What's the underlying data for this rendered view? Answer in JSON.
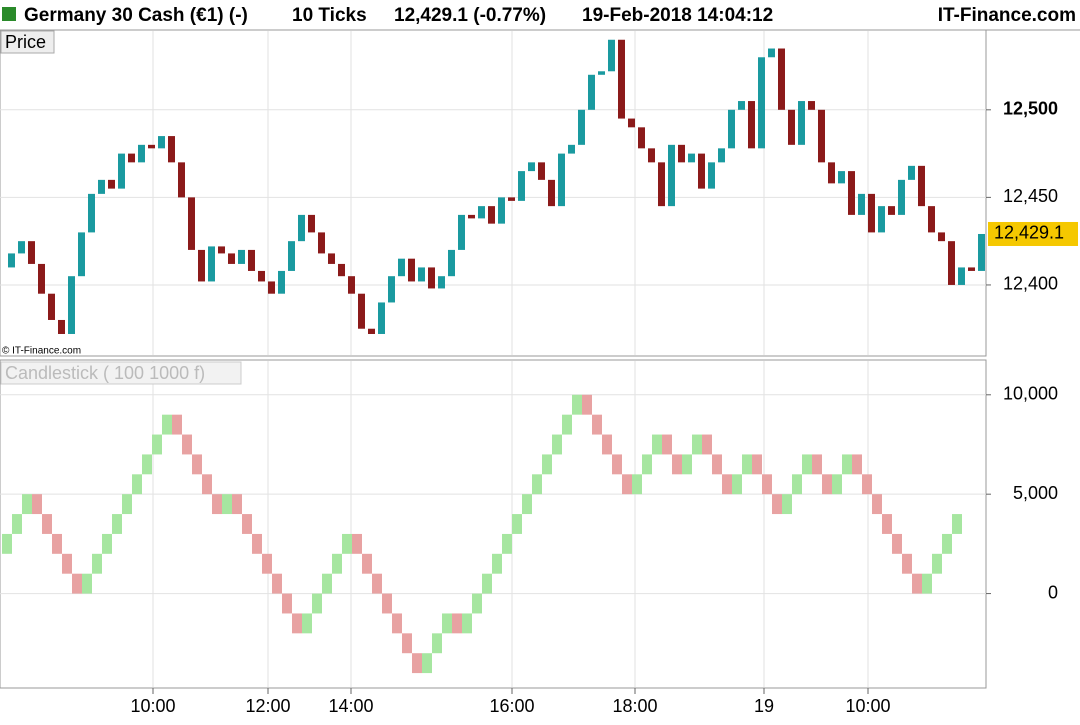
{
  "header": {
    "instrument": "Germany 30 Cash (€1) (-)",
    "interval": "10 Ticks",
    "quote": "12,429.1 (-0.77%)",
    "datetime": "19-Feb-2018 14:04:12",
    "brand": "IT-Finance.com"
  },
  "chart_data": [
    {
      "type": "price",
      "title": "Price",
      "credit": "© IT-Finance.com",
      "last_label": "12,429.1",
      "up_color": "#1a9aa0",
      "down_color": "#8b1a1a",
      "values": [
        12410,
        12418,
        12425,
        12412,
        12395,
        12380,
        12372,
        12405,
        12430,
        12452,
        12460,
        12455,
        12475,
        12470,
        12480,
        12478,
        12485,
        12470,
        12450,
        12420,
        12402,
        12422,
        12418,
        12412,
        12420,
        12408,
        12402,
        12395,
        12408,
        12425,
        12440,
        12430,
        12418,
        12412,
        12405,
        12395,
        12375,
        12372,
        12390,
        12405,
        12415,
        12402,
        12410,
        12398,
        12405,
        12420,
        12440,
        12438,
        12445,
        12435,
        12450,
        12448,
        12465,
        12470,
        12460,
        12445,
        12475,
        12480,
        12500,
        12520,
        12522,
        12540,
        12495,
        12490,
        12478,
        12470,
        12445,
        12480,
        12470,
        12475,
        12455,
        12470,
        12478,
        12500,
        12505,
        12478,
        12530,
        12535,
        12500,
        12480,
        12505,
        12500,
        12470,
        12458,
        12465,
        12440,
        12452,
        12430,
        12445,
        12440,
        12460,
        12468,
        12445,
        12430,
        12425,
        12400,
        12410,
        12408,
        12429.1
      ],
      "ylim": [
        12360,
        12545
      ],
      "yticks": [
        {
          "value": 12400,
          "label": "12,400"
        },
        {
          "value": 12450,
          "label": "12,450"
        },
        {
          "value": 12500,
          "label": "12,500"
        }
      ],
      "grid": true,
      "xticks": [
        {
          "value": 14.9,
          "label": "10:00"
        },
        {
          "value": 26.4,
          "label": "12:00"
        },
        {
          "value": 34.7,
          "label": "14:00"
        },
        {
          "value": 50.8,
          "label": "16:00"
        },
        {
          "value": 63.1,
          "label": "18:00"
        },
        {
          "value": 76,
          "label": "19"
        },
        {
          "value": 86.4,
          "label": "10:00"
        }
      ]
    },
    {
      "type": "renko",
      "title": "Candlestick ( 100 1000 f)",
      "up_color": "#a6e6a0",
      "down_color": "#e8a2a2",
      "values": [
        2000,
        3000,
        4000,
        5000,
        4000,
        3000,
        2000,
        1000,
        0,
        1000,
        2000,
        3000,
        4000,
        5000,
        6000,
        7000,
        8000,
        9000,
        8000,
        7000,
        6000,
        5000,
        4000,
        5000,
        4000,
        3000,
        2000,
        1000,
        0,
        -1000,
        -2000,
        -1000,
        0,
        1000,
        2000,
        3000,
        2000,
        1000,
        0,
        -1000,
        -2000,
        -3000,
        -4000,
        -3000,
        -2000,
        -1000,
        -2000,
        -1000,
        0,
        1000,
        2000,
        3000,
        4000,
        5000,
        6000,
        7000,
        8000,
        9000,
        10000,
        9000,
        8000,
        7000,
        6000,
        5000,
        6000,
        7000,
        8000,
        7000,
        6000,
        7000,
        8000,
        7000,
        6000,
        5000,
        6000,
        7000,
        6000,
        5000,
        4000,
        5000,
        6000,
        7000,
        6000,
        5000,
        6000,
        7000,
        6000,
        5000,
        4000,
        3000,
        2000,
        1000,
        0,
        1000,
        2000,
        3000,
        4000
      ],
      "ylim": [
        -4700,
        11700
      ],
      "yticks": [
        0,
        {
          "value": 5000,
          "label": "5,000"
        },
        {
          "value": 10000,
          "label": "10,000"
        }
      ],
      "grid": true
    }
  ]
}
